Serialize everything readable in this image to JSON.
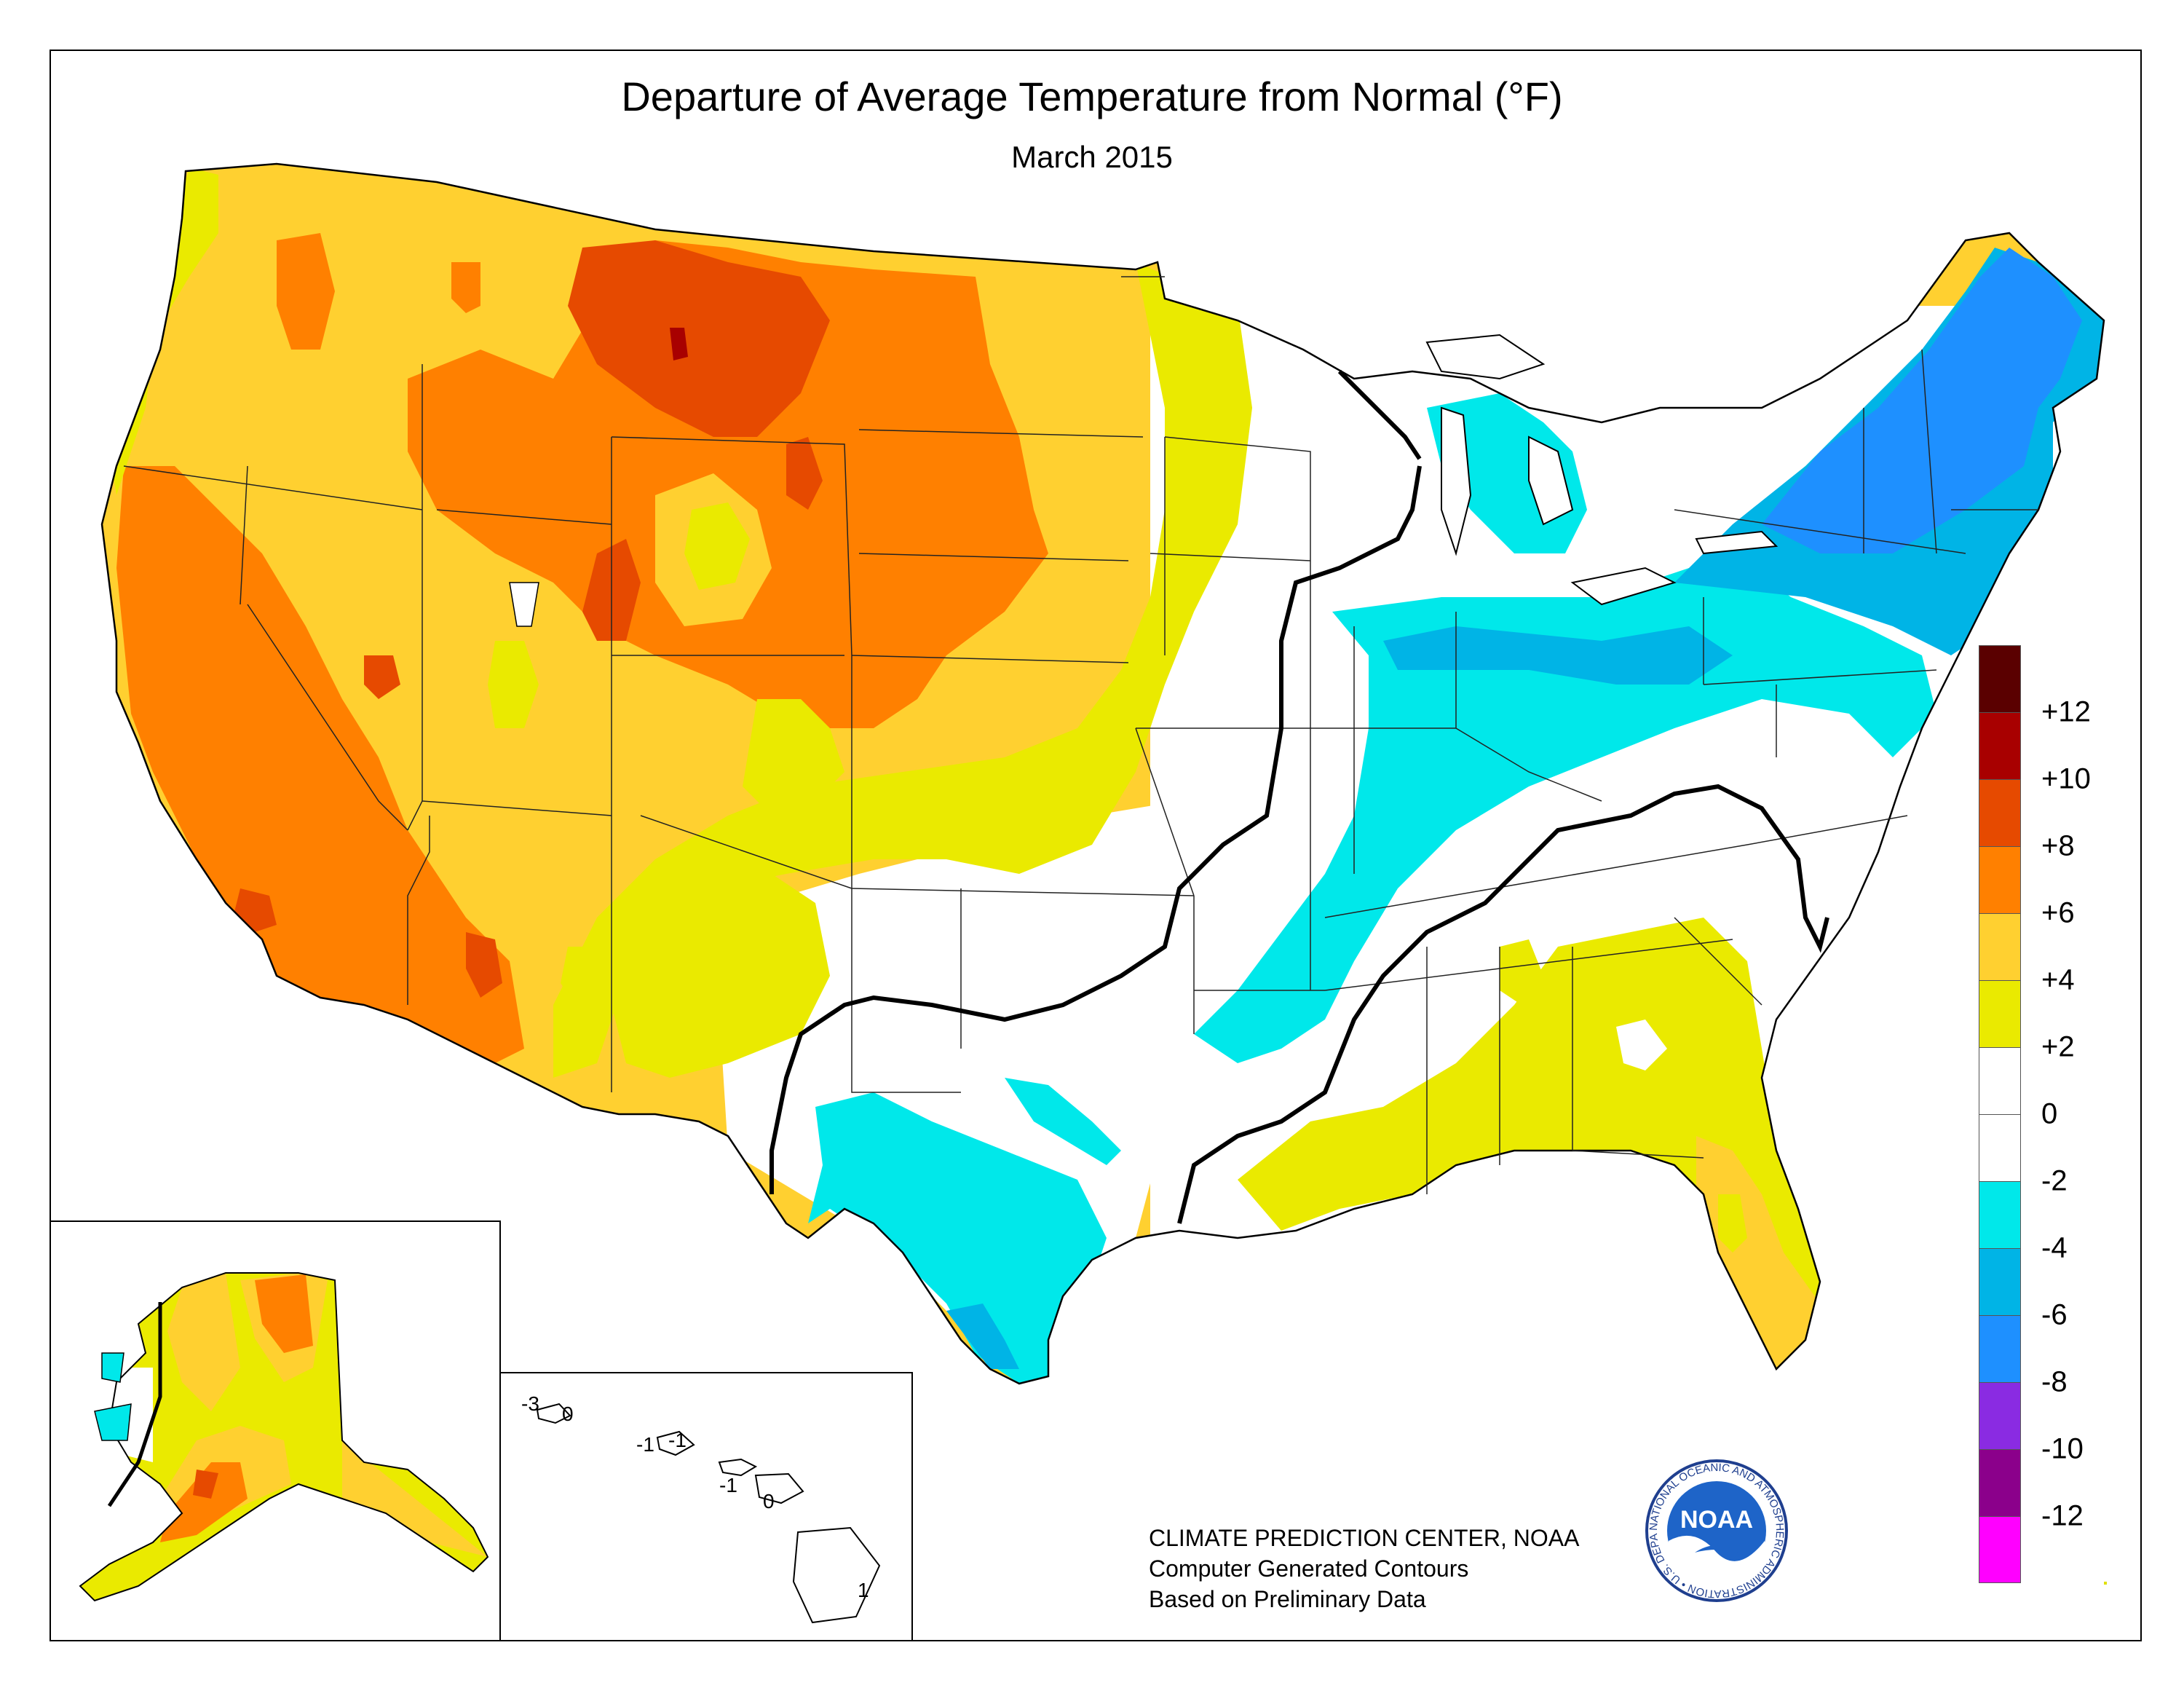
{
  "title": "Departure of Average Temperature from Normal (°F)",
  "subtitle": "March 2015",
  "credits": {
    "line1": "CLIMATE PREDICTION CENTER, NOAA",
    "line2": "Computer Generated Contours",
    "line3": "Based on Preliminary Data"
  },
  "logo": {
    "center_text": "NOAA",
    "ring_text": "NATIONAL OCEANIC AND ATMOSPHERIC ADMINISTRATION • U.S. DEPARTMENT OF COMMERCE"
  },
  "legend": {
    "swatches": [
      {
        "range": ">+12",
        "color": "#5a0000"
      },
      {
        "range": "+10 to +12",
        "color": "#a80000"
      },
      {
        "range": "+8 to +10",
        "color": "#e64a00"
      },
      {
        "range": "+6 to +8",
        "color": "#ff8000"
      },
      {
        "range": "+4 to +6",
        "color": "#ffd030"
      },
      {
        "range": "+2 to +4",
        "color": "#eaea00"
      },
      {
        "range": "0 to +2",
        "color": "#ffffff"
      },
      {
        "range": "-2 to 0",
        "color": "#ffffff"
      },
      {
        "range": "-4 to -2",
        "color": "#00e8ea"
      },
      {
        "range": "-6 to -4",
        "color": "#00b4e6"
      },
      {
        "range": "-8 to -6",
        "color": "#1e90ff"
      },
      {
        "range": "-10 to -8",
        "color": "#8a2be2"
      },
      {
        "range": "-12 to -10",
        "color": "#8b008b"
      },
      {
        "range": "<-12",
        "color": "#ff00ff"
      }
    ],
    "ticks": [
      "+12",
      "+10",
      "+8",
      "+6",
      "+4",
      "+2",
      "0",
      "-2",
      "-4",
      "-6",
      "-8",
      "-10",
      "-12"
    ]
  },
  "colors": {
    "c_hot": "#e64a00",
    "c_orange": "#ff8000",
    "c_lightorange": "#ffd030",
    "c_yellow": "#eaea00",
    "c_white": "#ffffff",
    "c_cyan": "#00e8ea",
    "c_blue1": "#00b4e6",
    "c_blue2": "#1e90ff",
    "c_darkred": "#a80000"
  },
  "hawaii_labels": {
    "kauai_a": "-3",
    "kauai_b": "0",
    "oahu_a": "-1",
    "oahu_b": "-1",
    "maui_a": "-1",
    "maui_b": "0",
    "bigisland": "1"
  }
}
